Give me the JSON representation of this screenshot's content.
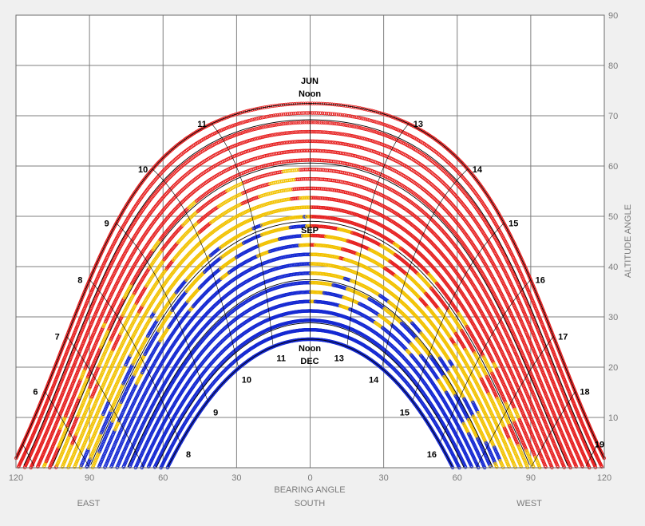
{
  "chart_data": {
    "type": "scatter",
    "title": "",
    "xlabel": "BEARING ANGLE",
    "xlabel_sub": "SOUTH",
    "x_dir_left": "EAST",
    "x_dir_right": "WEST",
    "ylabel": "ALTITUDE ANGLE",
    "xlim": [
      -120,
      120
    ],
    "ylim": [
      0,
      90
    ],
    "x_ticks": [
      -120,
      -90,
      -60,
      -30,
      0,
      30,
      60,
      90,
      120
    ],
    "x_tick_labels": [
      "120",
      "90",
      "60",
      "30",
      "0",
      "30",
      "60",
      "90",
      "120"
    ],
    "y_ticks": [
      10,
      20,
      30,
      40,
      50,
      60,
      70,
      80,
      90
    ],
    "y_tick_labels": [
      "10",
      "20",
      "30",
      "40",
      "50",
      "60",
      "70",
      "80",
      "90"
    ],
    "grid": true,
    "latitude_deg": 41,
    "colors": {
      "hot": "#e61e1e",
      "warm": "#f2c200",
      "cool": "#1428d2",
      "line": "#000000",
      "grid": "#7f7f7f"
    },
    "month_labels": {
      "jun_month": "JUN",
      "jun_noon": "Noon",
      "sep_month": "SEP",
      "dec_noon": "Noon",
      "dec_month": "DEC"
    },
    "hour_labels": {
      "jun": [
        {
          "h": 6,
          "text": "6"
        },
        {
          "h": 7,
          "text": "7"
        },
        {
          "h": 8,
          "text": "8"
        },
        {
          "h": 9,
          "text": "9"
        },
        {
          "h": 10,
          "text": "10"
        },
        {
          "h": 11,
          "text": "11"
        },
        {
          "h": 13,
          "text": "13"
        },
        {
          "h": 14,
          "text": "14"
        },
        {
          "h": 15,
          "text": "15"
        },
        {
          "h": 16,
          "text": "16"
        },
        {
          "h": 17,
          "text": "17"
        },
        {
          "h": 18,
          "text": "18"
        },
        {
          "h": 19,
          "text": "19"
        }
      ],
      "dec": [
        {
          "h": 8,
          "text": "8"
        },
        {
          "h": 9,
          "text": "9"
        },
        {
          "h": 10,
          "text": "10"
        },
        {
          "h": 11,
          "text": "11"
        },
        {
          "h": 13,
          "text": "13"
        },
        {
          "h": 14,
          "text": "14"
        },
        {
          "h": 15,
          "text": "15"
        },
        {
          "h": 16,
          "text": "16"
        }
      ]
    },
    "declination_curves_deg": [
      23.44,
      20.2,
      11.6,
      0,
      -11.6,
      -20.2,
      -23.44
    ],
    "hour_lines": [
      5,
      6,
      7,
      8,
      9,
      10,
      11,
      12,
      13,
      14,
      15,
      16,
      17,
      18,
      19
    ]
  }
}
